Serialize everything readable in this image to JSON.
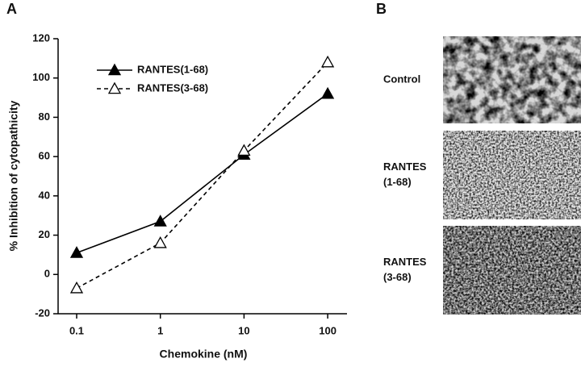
{
  "panel_labels": [
    "A",
    "B"
  ],
  "chart_data": {
    "type": "line",
    "x_label": "Chemokine (nM)",
    "y_label": "% Inhibition of cytopathicity",
    "x": [
      0.1,
      1,
      10,
      100
    ],
    "series": [
      {
        "name": "RANTES(1-68)",
        "color": "#000000",
        "marker": "filled-triangle",
        "dash": false,
        "values": [
          11,
          27,
          61,
          92
        ]
      },
      {
        "name": "RANTES(3-68)",
        "color": "#000000",
        "marker": "open-triangle",
        "dash": true,
        "values": [
          -7,
          16,
          63,
          108
        ]
      }
    ],
    "log_x": true,
    "xlim": [
      0.06,
      170
    ],
    "xticks": [
      0.1,
      1,
      10,
      100
    ],
    "ylim": [
      -20,
      120
    ],
    "yticks": [
      -20,
      0,
      20,
      40,
      60,
      80,
      100,
      120
    ],
    "legend": "upper left"
  },
  "micrographs": [
    {
      "label_lines": [
        "Control"
      ]
    },
    {
      "label_lines": [
        "RANTES",
        "(1-68)"
      ]
    },
    {
      "label_lines": [
        "RANTES",
        "(3-68)"
      ]
    }
  ]
}
